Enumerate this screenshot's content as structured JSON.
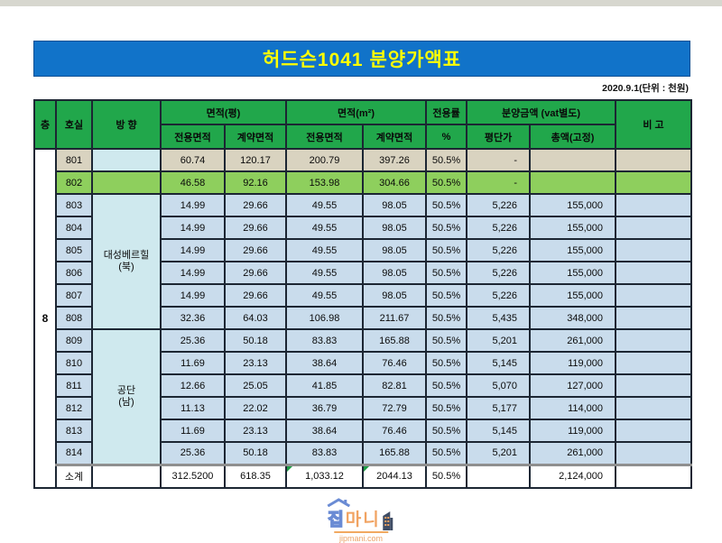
{
  "page": {
    "title": "허드슨1041 분양가액표",
    "date_note": "2020.9.1(단위 : 천원)"
  },
  "table": {
    "headers": {
      "floor": "층",
      "room": "호실",
      "direction": "방 향",
      "area_pyeong": "면적(평)",
      "area_m2": "면적(m²)",
      "exclusive_rate": "전용률",
      "sale_amount": "분양금액 (vat별도)",
      "remarks": "비 고",
      "sub_exclusive": "전용면적",
      "sub_contract": "계약면적",
      "sub_percent": "%",
      "sub_unit_price": "평단가",
      "sub_total_price": "총액(고정)"
    },
    "floor_value": "8",
    "rows": [
      {
        "room": "801",
        "cls": "beige",
        "dir": {
          "lines": [],
          "span": 1,
          "cls": "dir-cyan"
        },
        "py_ex": "60.74",
        "py_ct": "120.17",
        "m2_ex": "200.79",
        "m2_ct": "397.26",
        "rate": "50.5%",
        "unit": "-",
        "total": "",
        "remark": ""
      },
      {
        "room": "802",
        "cls": "green",
        "dir": {
          "lines": [],
          "span": 1,
          "cls": "dir-green"
        },
        "py_ex": "46.58",
        "py_ct": "92.16",
        "m2_ex": "153.98",
        "m2_ct": "304.66",
        "rate": "50.5%",
        "unit": "-",
        "total": "",
        "remark": ""
      },
      {
        "room": "803",
        "cls": "blue",
        "dir": {
          "lines": [
            "대성베르힐",
            "(북)"
          ],
          "span": 6,
          "cls": "dir-cyan"
        },
        "py_ex": "14.99",
        "py_ct": "29.66",
        "m2_ex": "49.55",
        "m2_ct": "98.05",
        "rate": "50.5%",
        "unit": "5,226",
        "total": "155,000",
        "remark": ""
      },
      {
        "room": "804",
        "cls": "blue",
        "dir": null,
        "py_ex": "14.99",
        "py_ct": "29.66",
        "m2_ex": "49.55",
        "m2_ct": "98.05",
        "rate": "50.5%",
        "unit": "5,226",
        "total": "155,000",
        "remark": ""
      },
      {
        "room": "805",
        "cls": "blue",
        "dir": null,
        "py_ex": "14.99",
        "py_ct": "29.66",
        "m2_ex": "49.55",
        "m2_ct": "98.05",
        "rate": "50.5%",
        "unit": "5,226",
        "total": "155,000",
        "remark": ""
      },
      {
        "room": "806",
        "cls": "blue",
        "dir": null,
        "py_ex": "14.99",
        "py_ct": "29.66",
        "m2_ex": "49.55",
        "m2_ct": "98.05",
        "rate": "50.5%",
        "unit": "5,226",
        "total": "155,000",
        "remark": ""
      },
      {
        "room": "807",
        "cls": "blue",
        "dir": null,
        "py_ex": "14.99",
        "py_ct": "29.66",
        "m2_ex": "49.55",
        "m2_ct": "98.05",
        "rate": "50.5%",
        "unit": "5,226",
        "total": "155,000",
        "remark": ""
      },
      {
        "room": "808",
        "cls": "blue",
        "dir": null,
        "py_ex": "32.36",
        "py_ct": "64.03",
        "m2_ex": "106.98",
        "m2_ct": "211.67",
        "rate": "50.5%",
        "unit": "5,435",
        "total": "348,000",
        "remark": ""
      },
      {
        "room": "809",
        "cls": "blue",
        "dir": {
          "lines": [
            "공단",
            "(남)"
          ],
          "span": 6,
          "cls": "dir-cyan"
        },
        "py_ex": "25.36",
        "py_ct": "50.18",
        "m2_ex": "83.83",
        "m2_ct": "165.88",
        "rate": "50.5%",
        "unit": "5,201",
        "total": "261,000",
        "remark": ""
      },
      {
        "room": "810",
        "cls": "blue",
        "dir": null,
        "py_ex": "11.69",
        "py_ct": "23.13",
        "m2_ex": "38.64",
        "m2_ct": "76.46",
        "rate": "50.5%",
        "unit": "5,145",
        "total": "119,000",
        "remark": ""
      },
      {
        "room": "811",
        "cls": "blue",
        "dir": null,
        "py_ex": "12.66",
        "py_ct": "25.05",
        "m2_ex": "41.85",
        "m2_ct": "82.81",
        "rate": "50.5%",
        "unit": "5,070",
        "total": "127,000",
        "remark": ""
      },
      {
        "room": "812",
        "cls": "blue",
        "dir": null,
        "py_ex": "11.13",
        "py_ct": "22.02",
        "m2_ex": "36.79",
        "m2_ct": "72.79",
        "rate": "50.5%",
        "unit": "5,177",
        "total": "114,000",
        "remark": ""
      },
      {
        "room": "813",
        "cls": "blue",
        "dir": null,
        "py_ex": "11.69",
        "py_ct": "23.13",
        "m2_ex": "38.64",
        "m2_ct": "76.46",
        "rate": "50.5%",
        "unit": "5,145",
        "total": "119,000",
        "remark": ""
      },
      {
        "room": "814",
        "cls": "blue",
        "dir": null,
        "py_ex": "25.36",
        "py_ct": "50.18",
        "m2_ex": "83.83",
        "m2_ct": "165.88",
        "rate": "50.5%",
        "unit": "5,201",
        "total": "261,000",
        "remark": ""
      }
    ],
    "subtotal": {
      "label": "소계",
      "py_ex": "312.5200",
      "py_ct": "618.35",
      "m2_ex": "1,033.12",
      "m2_ct": "2044.13",
      "rate": "50.5%",
      "unit": "",
      "total": "2,124,000",
      "remark": "",
      "tri": [
        "m2_ex",
        "m2_ct"
      ]
    }
  },
  "logo": {
    "word1": "집",
    "word2": "마니",
    "domain": "jipmani.com"
  },
  "colors": {
    "title_bg": "#1173c9",
    "title_text": "#ffff00",
    "header_bg": "#21a74b",
    "row_beige": "#d9d3c0",
    "row_green": "#8ecf5d",
    "row_blue": "#c9dcec",
    "direction_cyan": "#cfe9ee",
    "grid_border": "#1c2633"
  }
}
